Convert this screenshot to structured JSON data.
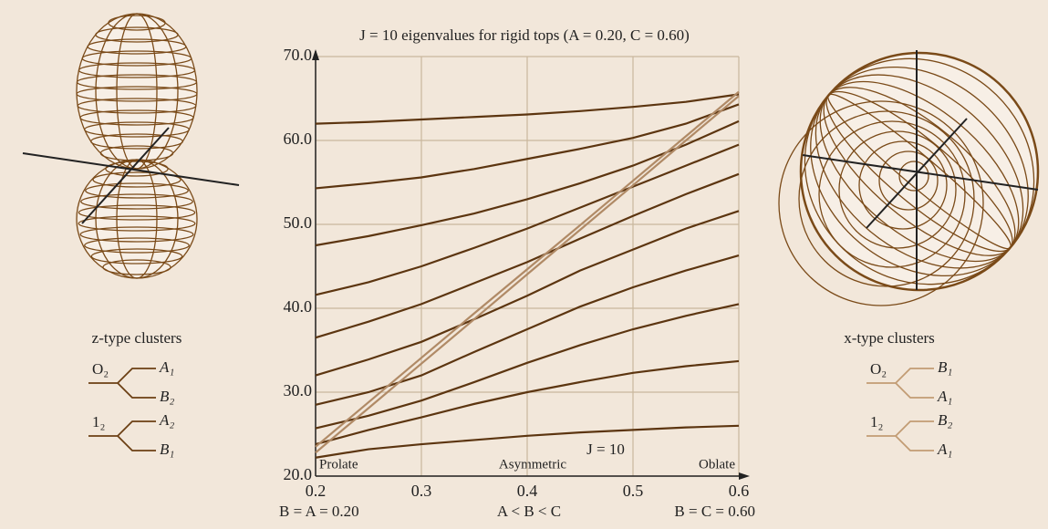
{
  "chart_data": {
    "type": "line",
    "title": "J = 10 eigenvalues for rigid tops (A = 0.20, C = 0.60)",
    "x": [
      0.2,
      0.25,
      0.3,
      0.35,
      0.4,
      0.45,
      0.5,
      0.55,
      0.6
    ],
    "series": [
      {
        "color": "#5c3510",
        "values": [
          62.0,
          62.2,
          62.5,
          62.8,
          63.1,
          63.5,
          64.0,
          64.6,
          65.5
        ]
      },
      {
        "color": "#5c3510",
        "values": [
          54.3,
          54.9,
          55.6,
          56.6,
          57.8,
          59.0,
          60.3,
          62.0,
          64.3
        ]
      },
      {
        "color": "#5c3510",
        "values": [
          47.5,
          48.6,
          49.9,
          51.3,
          53.0,
          54.9,
          57.0,
          59.5,
          62.3
        ]
      },
      {
        "color": "#5c3510",
        "values": [
          41.6,
          43.1,
          45.0,
          47.2,
          49.5,
          52.0,
          54.5,
          57.0,
          59.5
        ]
      },
      {
        "color": "#5c3510",
        "values": [
          36.5,
          38.4,
          40.5,
          43.0,
          45.5,
          48.3,
          51.0,
          53.6,
          56.0
        ]
      },
      {
        "color": "#5c3510",
        "values": [
          32.0,
          33.9,
          36.0,
          38.7,
          41.5,
          44.5,
          47.0,
          49.5,
          51.6
        ]
      },
      {
        "color": "#5c3510",
        "values": [
          28.5,
          30.0,
          32.0,
          34.8,
          37.5,
          40.2,
          42.5,
          44.5,
          46.3
        ]
      },
      {
        "color": "#5c3510",
        "values": [
          25.7,
          27.2,
          29.0,
          31.2,
          33.5,
          35.6,
          37.5,
          39.1,
          40.5
        ]
      },
      {
        "color": "#5c3510",
        "values": [
          23.8,
          25.5,
          27.0,
          28.6,
          30.0,
          31.2,
          32.3,
          33.1,
          33.7
        ]
      },
      {
        "color": "#5c3510",
        "values": [
          22.2,
          23.2,
          23.8,
          24.3,
          24.8,
          25.2,
          25.5,
          25.8,
          26.0
        ]
      },
      {
        "color": "#b08a66",
        "values": [
          23.5,
          28.8,
          34.1,
          39.4,
          44.65,
          49.9,
          55.2,
          60.5,
          65.8
        ]
      },
      {
        "color": "#b08a66",
        "values": [
          22.8,
          28.1,
          33.4,
          38.7,
          44.05,
          49.35,
          54.65,
          60.0,
          65.3
        ]
      }
    ],
    "xlim": [
      0.2,
      0.6
    ],
    "xticks": [
      0.2,
      0.3,
      0.4,
      0.5,
      0.6
    ],
    "ylim": [
      20,
      70
    ],
    "yticks": [
      {
        "value": 20,
        "label": "20.0"
      },
      {
        "value": 30,
        "label": "30.0"
      },
      {
        "value": 40,
        "label": "40.0"
      },
      {
        "value": 50,
        "label": "50.0"
      },
      {
        "value": 60,
        "label": "60.0"
      },
      {
        "value": 70,
        "label": "70.0"
      }
    ],
    "grid": true,
    "annotations": [
      "Prolate",
      "Asymmetric",
      "Oblate",
      "J = 10"
    ],
    "x_labels": [
      "B = A = 0.20",
      "A < B < C",
      "B = C = 0.60"
    ]
  },
  "left_panel": {
    "caption": "z-type clusters",
    "clusters": [
      {
        "root": "O₂",
        "branches": [
          "A₁",
          "B₂"
        ]
      },
      {
        "root": "1₂",
        "branches": [
          "A₂",
          "B₁"
        ]
      }
    ]
  },
  "right_panel": {
    "caption": "x-type clusters",
    "clusters": [
      {
        "root": "O₂",
        "branches": [
          "B₁",
          "A₁"
        ]
      },
      {
        "root": "1₂",
        "branches": [
          "B₂",
          "A₁"
        ]
      }
    ]
  }
}
